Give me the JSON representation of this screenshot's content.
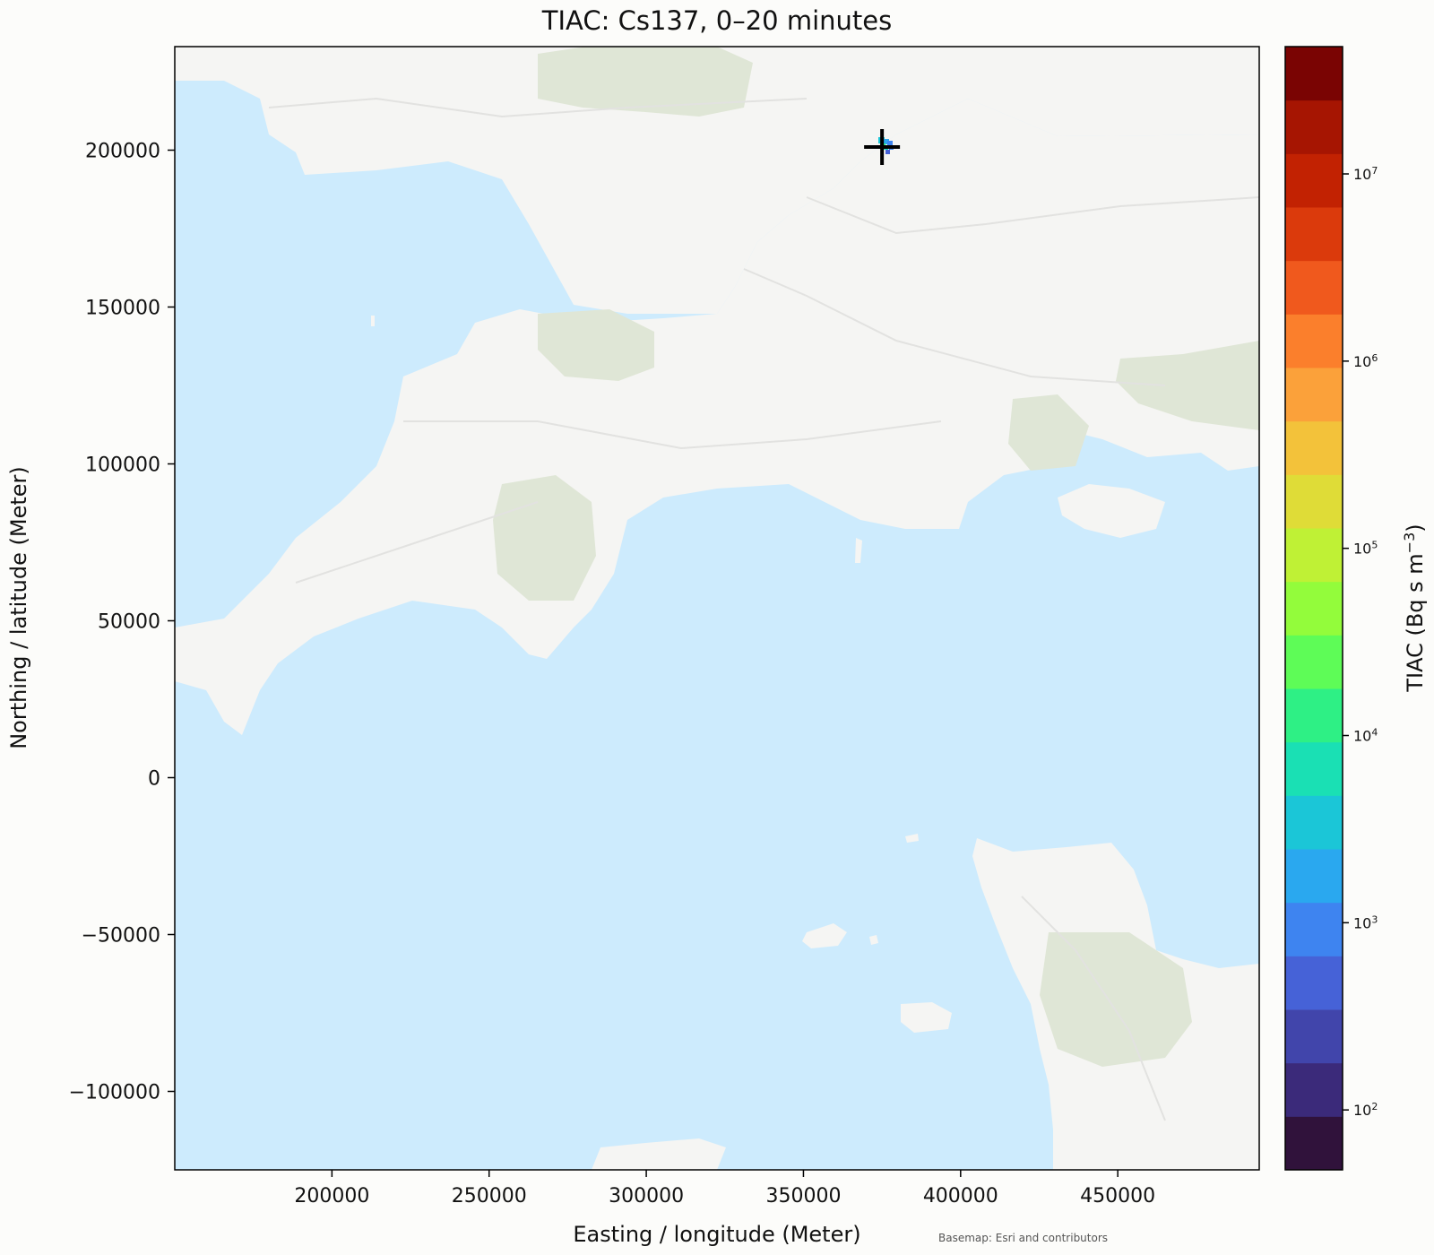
{
  "title": "TIAC: Cs137, 0–20 minutes",
  "xlabel": "Easting / longitude (Meter)",
  "ylabel": "Northing / latitude (Meter)",
  "attribution": "Basemap: Esri and contributors",
  "x_ticks": [
    "200000",
    "250000",
    "300000",
    "350000",
    "400000",
    "450000"
  ],
  "y_ticks": [
    "200000",
    "150000",
    "100000",
    "50000",
    "0",
    "−50000",
    "−100000"
  ],
  "colorbar": {
    "label_main": "TIAC (Bq s m",
    "label_sup": "−3",
    "label_end": ")",
    "scale": "log",
    "ticks": [
      {
        "base": "10",
        "exp": "2"
      },
      {
        "base": "10",
        "exp": "3"
      },
      {
        "base": "10",
        "exp": "4"
      },
      {
        "base": "10",
        "exp": "5"
      },
      {
        "base": "10",
        "exp": "6"
      },
      {
        "base": "10",
        "exp": "7"
      }
    ],
    "colors": [
      "#30123b",
      "#3b2a7a",
      "#4145ab",
      "#4662d7",
      "#3e84f0",
      "#2aa8ef",
      "#1bc6d7",
      "#1ae0b4",
      "#2ef085",
      "#5efc57",
      "#93fc3b",
      "#bff135",
      "#dfdc37",
      "#f3c23a",
      "#fba13a",
      "#fb7f2c",
      "#f0591d",
      "#db3a0c",
      "#c22202",
      "#a61502",
      "#7a0403"
    ]
  },
  "chart_data": {
    "type": "map",
    "xlim": [
      150000,
      495000
    ],
    "ylim": [
      -125000,
      233000
    ],
    "source_marker": {
      "x": 375000,
      "y": 201000
    },
    "grid": false
  }
}
